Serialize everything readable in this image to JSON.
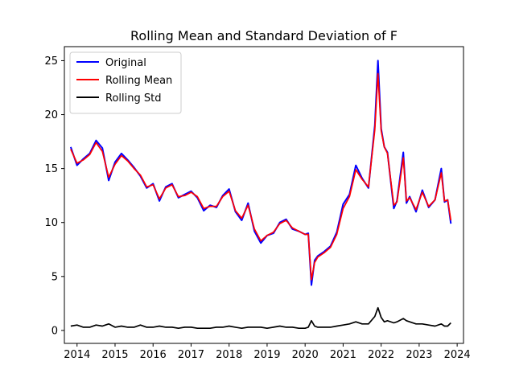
{
  "chart_data": {
    "type": "line",
    "title": "Rolling Mean and Standard Deviation of F",
    "xlabel": "",
    "ylabel": "",
    "xlim": [
      "2013-09",
      "2024-03"
    ],
    "ylim": [
      -1.2,
      26.3
    ],
    "x_ticks": [
      "2014",
      "2015",
      "2016",
      "2017",
      "2018",
      "2019",
      "2020",
      "2021",
      "2022",
      "2023",
      "2024"
    ],
    "y_ticks": [
      0,
      5,
      10,
      15,
      20,
      25
    ],
    "grid": false,
    "legend": {
      "placement": "top-left"
    },
    "x": [
      "2013-11",
      "2014-01",
      "2014-03",
      "2014-05",
      "2014-07",
      "2014-09",
      "2014-11",
      "2015-01",
      "2015-03",
      "2015-05",
      "2015-07",
      "2015-09",
      "2015-11",
      "2016-01",
      "2016-03",
      "2016-05",
      "2016-07",
      "2016-09",
      "2016-11",
      "2017-01",
      "2017-03",
      "2017-05",
      "2017-07",
      "2017-09",
      "2017-11",
      "2018-01",
      "2018-03",
      "2018-05",
      "2018-07",
      "2018-09",
      "2018-11",
      "2019-01",
      "2019-03",
      "2019-05",
      "2019-07",
      "2019-09",
      "2019-11",
      "2020-01",
      "2020-02",
      "2020-03",
      "2020-04",
      "2020-05",
      "2020-07",
      "2020-09",
      "2020-11",
      "2021-01",
      "2021-03",
      "2021-05",
      "2021-07",
      "2021-09",
      "2021-11",
      "2021-12",
      "2022-01",
      "2022-02",
      "2022-03",
      "2022-05",
      "2022-06",
      "2022-08",
      "2022-09",
      "2022-10",
      "2022-12",
      "2023-02",
      "2023-04",
      "2023-06",
      "2023-08",
      "2023-09",
      "2023-10",
      "2023-11"
    ],
    "series": [
      {
        "name": "Original",
        "color": "#0000ff",
        "values": [
          17.0,
          15.3,
          15.9,
          16.4,
          17.6,
          16.9,
          13.9,
          15.6,
          16.4,
          15.8,
          15.1,
          14.3,
          13.2,
          13.6,
          12.0,
          13.3,
          13.6,
          12.3,
          12.6,
          12.9,
          12.3,
          11.1,
          11.6,
          11.4,
          12.5,
          13.1,
          11.0,
          10.2,
          11.8,
          9.2,
          8.1,
          8.8,
          9.0,
          10.0,
          10.3,
          9.4,
          9.2,
          8.9,
          9.0,
          4.2,
          6.5,
          6.9,
          7.3,
          7.8,
          9.1,
          11.7,
          12.6,
          15.3,
          14.1,
          13.2,
          19.0,
          25.0,
          18.7,
          17.0,
          16.5,
          11.3,
          12.0,
          16.5,
          11.8,
          12.4,
          11.0,
          13.0,
          11.4,
          12.1,
          15.0,
          11.9,
          12.1,
          9.9
        ]
      },
      {
        "name": "Rolling Mean",
        "color": "#ff0000",
        "values": [
          16.8,
          15.5,
          15.8,
          16.3,
          17.4,
          16.6,
          14.2,
          15.4,
          16.2,
          15.7,
          15.0,
          14.4,
          13.3,
          13.5,
          12.2,
          13.2,
          13.5,
          12.4,
          12.5,
          12.8,
          12.4,
          11.3,
          11.5,
          11.5,
          12.4,
          12.9,
          11.1,
          10.4,
          11.6,
          9.4,
          8.3,
          8.8,
          9.1,
          9.9,
          10.2,
          9.5,
          9.2,
          8.9,
          8.9,
          4.7,
          6.3,
          6.8,
          7.2,
          7.7,
          8.9,
          11.3,
          12.4,
          14.9,
          14.0,
          13.3,
          18.6,
          23.8,
          18.5,
          17.0,
          16.4,
          11.6,
          11.9,
          16.0,
          12.0,
          12.3,
          11.2,
          12.8,
          11.5,
          12.1,
          14.6,
          12.0,
          12.1,
          10.2
        ]
      },
      {
        "name": "Rolling Std",
        "color": "#000000",
        "values": [
          0.4,
          0.5,
          0.3,
          0.3,
          0.5,
          0.4,
          0.6,
          0.3,
          0.4,
          0.3,
          0.3,
          0.5,
          0.3,
          0.3,
          0.4,
          0.3,
          0.3,
          0.2,
          0.3,
          0.3,
          0.2,
          0.2,
          0.2,
          0.3,
          0.3,
          0.4,
          0.3,
          0.2,
          0.3,
          0.3,
          0.3,
          0.2,
          0.3,
          0.4,
          0.3,
          0.3,
          0.2,
          0.2,
          0.3,
          0.9,
          0.4,
          0.3,
          0.3,
          0.3,
          0.4,
          0.5,
          0.6,
          0.8,
          0.6,
          0.6,
          1.3,
          2.1,
          1.2,
          0.8,
          0.9,
          0.7,
          0.8,
          1.1,
          0.9,
          0.8,
          0.6,
          0.6,
          0.5,
          0.4,
          0.6,
          0.4,
          0.4,
          0.7
        ]
      }
    ]
  }
}
